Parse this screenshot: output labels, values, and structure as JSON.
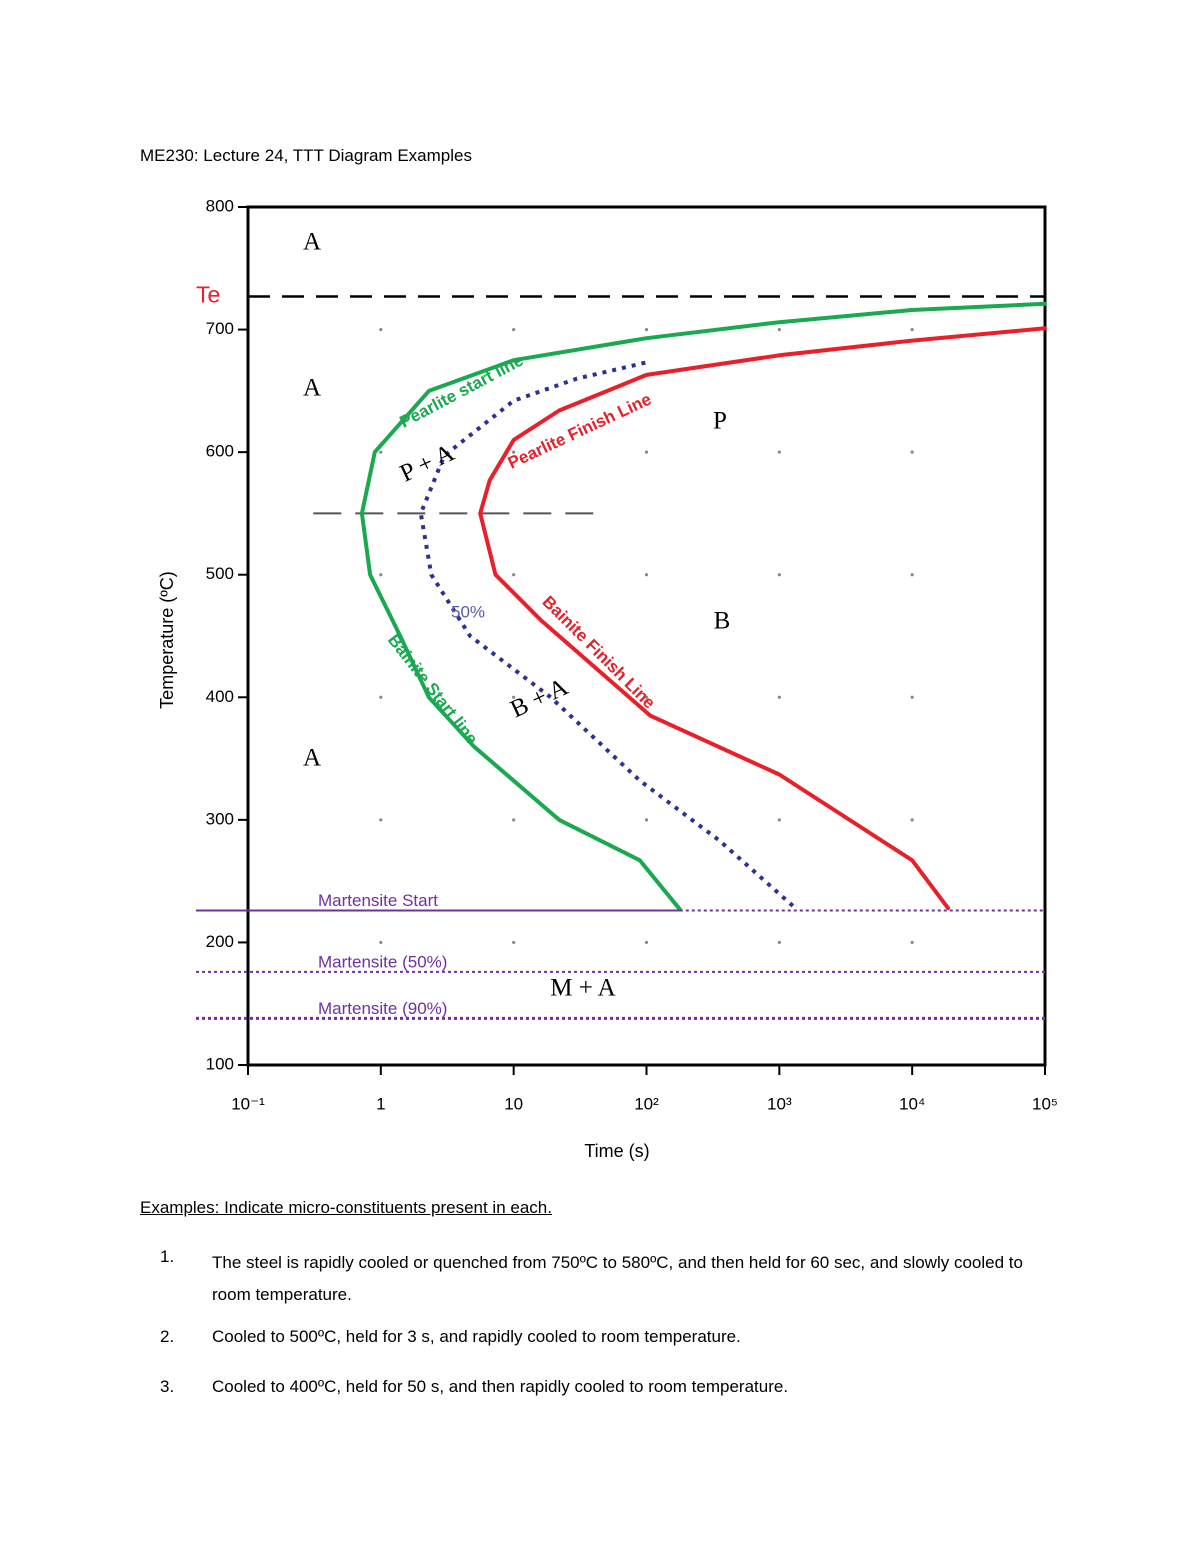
{
  "header": {
    "title": "ME230: Lecture 24, TTT Diagram Examples"
  },
  "chart_data": {
    "type": "line",
    "x_label": "Time (s)",
    "y_label": "Temperature (ºC)",
    "x_scale": "log",
    "xlim": [
      0.1,
      100000
    ],
    "ylim": [
      100,
      800
    ],
    "xticks": [
      {
        "value": 0.1,
        "label": "10⁻¹"
      },
      1,
      10,
      {
        "value": 100,
        "label": "10²"
      },
      {
        "value": 1000,
        "label": "10³"
      },
      {
        "value": 10000,
        "label": "10⁴"
      },
      {
        "value": 100000,
        "label": "10⁵"
      }
    ],
    "yticks": [
      100,
      200,
      300,
      400,
      500,
      600,
      700,
      800
    ],
    "grid": "dots",
    "series": [
      {
        "color": "#1aa850",
        "line_style": "solid",
        "x": [
          100000,
          10000,
          1000,
          100,
          10,
          2.3,
          0.9,
          0.72,
          0.83,
          1.4,
          2.3,
          5,
          22,
          89,
          178
        ],
        "values": [
          721,
          716,
          706,
          693,
          675,
          650,
          600,
          550,
          500,
          450,
          400,
          360,
          300,
          267,
          227
        ]
      },
      {
        "color": "#2e3192",
        "line_style": "dotted",
        "x": [
          98,
          30,
          10,
          3,
          2,
          2.4,
          4.7,
          19,
          89,
          355,
          1320
        ],
        "values": [
          673,
          660,
          642,
          597,
          550,
          500,
          450,
          400,
          332,
          283,
          228
        ]
      },
      {
        "color": "#e8202a",
        "line_style": "solid",
        "x": [
          100000,
          10000,
          1000,
          100,
          22,
          10,
          6.6,
          5.6,
          7.3,
          16,
          107,
          1000,
          10000,
          18600
        ],
        "values": [
          701,
          691,
          679,
          663,
          634,
          610,
          577,
          550,
          500,
          463,
          385,
          337,
          267,
          228
        ]
      }
    ],
    "guide_line": {
      "x": [
        0.31,
        45
      ],
      "values": [
        550,
        550
      ]
    },
    "te_line": {
      "label": "Te",
      "value": 727,
      "label_color": "#e8202a"
    },
    "martensite_lines": [
      {
        "label": "Martensite Start",
        "value": 226
      },
      {
        "label": "Martensite (50%)",
        "value": 176
      },
      {
        "label": "Martensite (90%)",
        "value": 138
      }
    ],
    "martensite_color": "#7030a0",
    "curve_labels": [
      {
        "text": "Pearlite start line",
        "color": "#1aa850"
      },
      {
        "text": "Pearlite Finish Line",
        "color": "#e8202a"
      },
      {
        "text": "Bainite Start line",
        "color": "#1aa850"
      },
      {
        "text": "Bainite Finish Line",
        "color": "#e8202a"
      },
      {
        "text": "50%",
        "color": "#5a5ab4"
      }
    ],
    "region_labels": [
      "A",
      "A",
      "A",
      "P",
      "B",
      "P + A",
      "B + A",
      "M + A"
    ]
  },
  "examples": {
    "heading": "Examples: Indicate micro-constituents present in each.",
    "items": [
      {
        "number": "1.",
        "text": "The steel is rapidly cooled or quenched from 750ºC to 580ºC, and then held for 60 sec, and slowly cooled to room temperature."
      },
      {
        "number": "2.",
        "text": "Cooled to 500ºC, held for 3 s, and rapidly cooled to room temperature."
      },
      {
        "number": "3.",
        "text": "Cooled to 400ºC, held for 50 s, and then rapidly cooled to room temperature."
      }
    ]
  }
}
